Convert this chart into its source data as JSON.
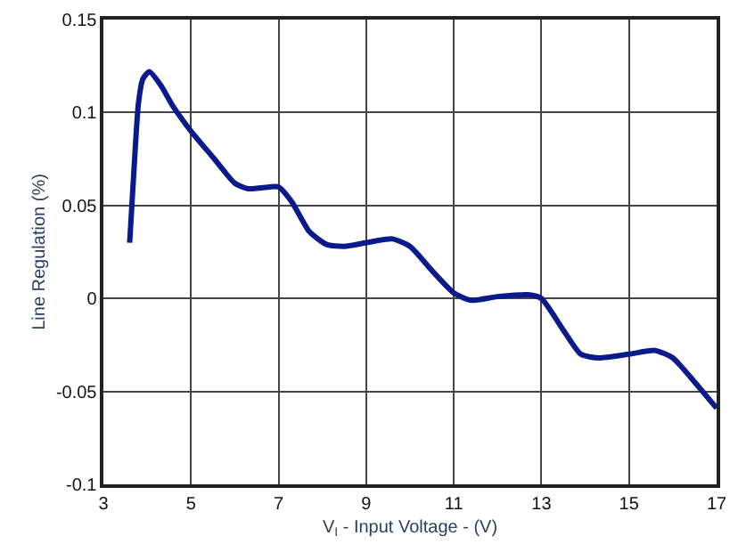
{
  "chart_data": {
    "type": "line",
    "xlabel": "V$_{I}$ - Input Voltage - (V)",
    "ylabel": "Line Regulation (%)",
    "x": [
      3.6,
      3.7,
      3.8,
      3.9,
      4.05,
      4.3,
      4.6,
      5,
      5.5,
      6,
      6.3,
      6.8,
      7.0,
      7.3,
      7.7,
      8.1,
      8.5,
      9,
      9.6,
      10,
      10.5,
      11,
      11.4,
      12,
      12.7,
      13,
      13.5,
      13.9,
      14.3,
      15,
      15.6,
      16,
      16.5,
      17
    ],
    "series": [
      {
        "color": "#0a1a8c",
        "values": [
          0.03,
          0.07,
          0.105,
          0.118,
          0.122,
          0.115,
          0.103,
          0.09,
          0.076,
          0.062,
          0.059,
          0.06,
          0.06,
          0.052,
          0.036,
          0.029,
          0.028,
          0.03,
          0.032,
          0.028,
          0.015,
          0.003,
          -0.001,
          0.001,
          0.002,
          0,
          -0.017,
          -0.03,
          -0.032,
          -0.03,
          -0.028,
          -0.032,
          -0.045,
          -0.059
        ]
      }
    ],
    "xlim": [
      3,
      17
    ],
    "xticks": [
      3,
      5,
      7,
      9,
      11,
      13,
      15,
      17
    ],
    "ylim": [
      -0.1,
      0.15
    ],
    "yticks": [
      -0.1,
      {
        "value": -0.05,
        "label": "-0.05"
      },
      0,
      0.05,
      0.1,
      0.15
    ],
    "grid": true,
    "legend": false,
    "marker": "none",
    "line_style": "solid"
  }
}
